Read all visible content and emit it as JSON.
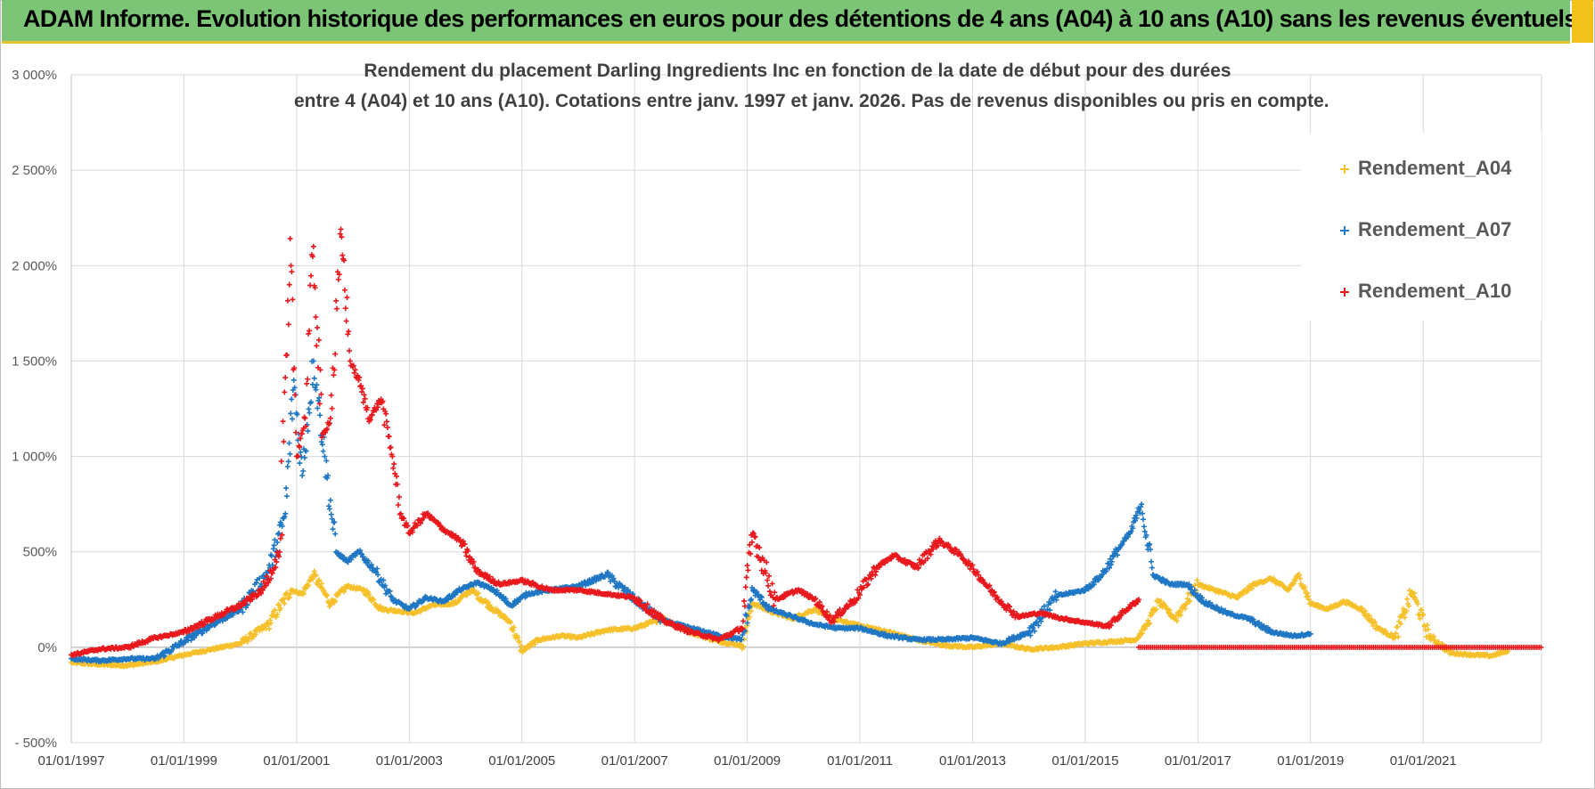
{
  "banner": {
    "title": "ADAM Informe. Evolution historique des performances en euros pour des détentions de 4 ans (A04) à 10 ans (A10) sans les revenus éventuels",
    "background_color": "#7cc576",
    "accent_color": "#f2c21a"
  },
  "chart_data": {
    "type": "scatter",
    "title_line1": "Rendement du placement Darling Ingredients Inc en fonction de la date de début pour des durées",
    "title_line2": "entre 4 (A04) et 10 ans (A10).  Cotations entre janv. 1997 et janv. 2026. Pas de revenus disponibles ou pris en compte.",
    "x_axis": {
      "type": "date",
      "range": [
        1997.0,
        2023.1
      ],
      "ticks": [
        1997,
        1999,
        2001,
        2003,
        2005,
        2007,
        2009,
        2011,
        2013,
        2015,
        2017,
        2019,
        2021
      ],
      "tick_labels": [
        "01/01/1997",
        "01/01/1999",
        "01/01/2001",
        "01/01/2003",
        "01/01/2005",
        "01/01/2007",
        "01/01/2009",
        "01/01/2011",
        "01/01/2013",
        "01/01/2015",
        "01/01/2017",
        "01/01/2019",
        "01/01/2021"
      ]
    },
    "y_axis": {
      "range": [
        -500,
        3000
      ],
      "ticks": [
        -500,
        0,
        500,
        1000,
        1500,
        2000,
        2500,
        3000
      ],
      "tick_labels": [
        "- 500%",
        "0%",
        "500%",
        "1 000%",
        "1 500%",
        "2 000%",
        "2 500%",
        "3 000%"
      ],
      "unit": "%"
    },
    "grid": true,
    "legend_position": "right",
    "series": [
      {
        "name": "Rendement_A04",
        "color": "#f5c02a",
        "x": [
          1997.0,
          1997.5,
          1998.0,
          1998.5,
          1999.0,
          1999.5,
          2000.0,
          2000.5,
          2000.9,
          2001.1,
          2001.3,
          2001.6,
          2001.9,
          2002.2,
          2002.5,
          2002.8,
          2003.1,
          2003.4,
          2003.8,
          2004.1,
          2004.5,
          2004.8,
          2005.0,
          2005.3,
          2005.7,
          2006.0,
          2006.5,
          2007.0,
          2007.5,
          2008.0,
          2008.5,
          2008.9,
          2009.1,
          2009.4,
          2009.8,
          2010.2,
          2010.5,
          2010.9,
          2011.5,
          2012.0,
          2012.5,
          2013.0,
          2013.5,
          2014.0,
          2014.5,
          2015.0,
          2015.5,
          2015.9,
          2016.1,
          2016.3,
          2016.6,
          2017.0,
          2017.3,
          2017.7,
          2018.0,
          2018.3,
          2018.6,
          2018.8,
          2019.0,
          2019.3,
          2019.6,
          2019.9,
          2020.2,
          2020.5,
          2020.8,
          2021.1,
          2021.5,
          2021.9,
          2022.2,
          2022.5
        ],
        "y": [
          -80,
          -90,
          -95,
          -75,
          -40,
          -10,
          20,
          120,
          300,
          280,
          380,
          230,
          320,
          300,
          200,
          190,
          180,
          220,
          230,
          300,
          200,
          130,
          -20,
          40,
          60,
          50,
          90,
          100,
          150,
          80,
          30,
          10,
          230,
          190,
          150,
          200,
          150,
          120,
          80,
          40,
          10,
          0,
          20,
          -10,
          0,
          20,
          30,
          40,
          120,
          240,
          150,
          330,
          300,
          260,
          330,
          360,
          300,
          380,
          230,
          200,
          240,
          200,
          100,
          50,
          290,
          60,
          -30,
          -40,
          -45,
          -20
        ]
      },
      {
        "name": "Rendement_A07",
        "color": "#1f77c4",
        "x": [
          1997.0,
          1997.5,
          1998.0,
          1998.5,
          1999.0,
          1999.5,
          2000.0,
          2000.5,
          2000.8,
          2000.95,
          2001.1,
          2001.3,
          2001.5,
          2001.7,
          2001.9,
          2002.1,
          2002.4,
          2002.7,
          2003.0,
          2003.3,
          2003.6,
          2003.9,
          2004.2,
          2004.5,
          2004.8,
          2005.1,
          2005.5,
          2006.0,
          2006.5,
          2007.0,
          2007.5,
          2008.0,
          2008.5,
          2008.9,
          2009.1,
          2009.4,
          2009.8,
          2010.2,
          2010.6,
          2011.0,
          2011.5,
          2012.0,
          2012.5,
          2013.0,
          2013.5,
          2014.0,
          2014.5,
          2015.0,
          2015.3,
          2015.6,
          2015.8,
          2016.0,
          2016.2,
          2016.5,
          2016.8,
          2017.1,
          2017.5,
          2017.9,
          2018.3,
          2018.7,
          2019.0
        ],
        "y": [
          -60,
          -70,
          -60,
          -60,
          30,
          120,
          200,
          400,
          700,
          1400,
          900,
          1500,
          1000,
          500,
          450,
          500,
          400,
          250,
          200,
          260,
          240,
          300,
          340,
          300,
          220,
          280,
          300,
          320,
          380,
          250,
          140,
          100,
          60,
          40,
          300,
          200,
          160,
          120,
          100,
          100,
          60,
          40,
          40,
          50,
          20,
          80,
          270,
          300,
          380,
          520,
          600,
          750,
          380,
          330,
          330,
          240,
          180,
          150,
          80,
          60,
          70
        ]
      },
      {
        "name": "Rendement_A10",
        "color": "#e8181c",
        "x": [
          1997.0,
          1997.5,
          1998.0,
          1998.5,
          1999.0,
          1999.5,
          2000.0,
          2000.4,
          2000.7,
          2000.9,
          2001.0,
          2001.15,
          2001.3,
          2001.45,
          2001.6,
          2001.8,
          2001.95,
          2002.1,
          2002.3,
          2002.5,
          2002.7,
          2002.85,
          2003.0,
          2003.3,
          2003.6,
          2003.9,
          2004.2,
          2004.6,
          2005.0,
          2005.5,
          2006.0,
          2006.5,
          2007.0,
          2007.5,
          2008.0,
          2008.5,
          2008.9,
          2009.1,
          2009.5,
          2009.9,
          2010.2,
          2010.5,
          2010.9,
          2011.3,
          2011.6,
          2012.0,
          2012.4,
          2012.8,
          2013.1,
          2013.4,
          2013.8,
          2014.2,
          2014.6,
          2015.0,
          2015.4,
          2015.7,
          2015.95
        ],
        "y": [
          -40,
          -10,
          0,
          50,
          80,
          150,
          220,
          300,
          500,
          2000,
          1000,
          1200,
          2100,
          1100,
          1200,
          2150,
          1500,
          1400,
          1200,
          1300,
          1000,
          700,
          600,
          700,
          620,
          560,
          400,
          330,
          350,
          300,
          300,
          280,
          260,
          140,
          80,
          40,
          100,
          600,
          250,
          300,
          250,
          140,
          250,
          420,
          480,
          420,
          560,
          480,
          380,
          270,
          160,
          180,
          150,
          130,
          110,
          190,
          250
        ]
      }
    ],
    "zero_line_series": {
      "name": "Rendement_A10",
      "x_start": 2015.95,
      "x_end": 2023.1,
      "y": 0
    }
  },
  "legend": {
    "items": [
      {
        "label": "Rendement_A04",
        "color": "#f5c02a"
      },
      {
        "label": "Rendement_A07",
        "color": "#1f77c4"
      },
      {
        "label": "Rendement_A10",
        "color": "#e8181c"
      }
    ]
  }
}
